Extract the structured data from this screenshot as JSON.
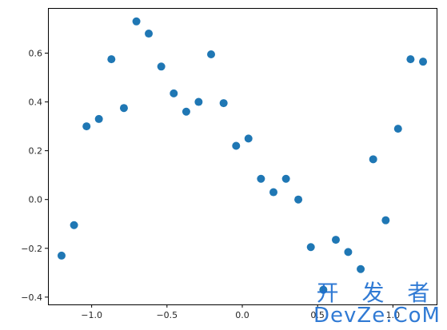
{
  "chart_data": {
    "type": "scatter",
    "title": "",
    "xlabel": "",
    "ylabel": "",
    "xlim": [
      -1.29,
      1.29
    ],
    "ylim": [
      -0.43,
      0.785
    ],
    "xticks": [
      -1.0,
      -0.5,
      0.0,
      0.5,
      1.0
    ],
    "yticks": [
      -0.4,
      -0.2,
      0.0,
      0.2,
      0.4,
      0.6
    ],
    "xtick_labels": [
      "−1.0",
      "−0.5",
      "0.0",
      "0.5",
      "1.0"
    ],
    "ytick_labels": [
      "−0.4",
      "−0.2",
      "0.0",
      "0.2",
      "0.4",
      "0.6"
    ],
    "grid": false,
    "marker_color": "#1f77b4",
    "points": [
      {
        "x": -1.2,
        "y": -0.23
      },
      {
        "x": -1.117,
        "y": -0.105
      },
      {
        "x": -1.034,
        "y": 0.3
      },
      {
        "x": -0.952,
        "y": 0.33
      },
      {
        "x": -0.869,
        "y": 0.575
      },
      {
        "x": -0.786,
        "y": 0.375
      },
      {
        "x": -0.703,
        "y": 0.73
      },
      {
        "x": -0.621,
        "y": 0.68
      },
      {
        "x": -0.538,
        "y": 0.545
      },
      {
        "x": -0.455,
        "y": 0.435
      },
      {
        "x": -0.372,
        "y": 0.36
      },
      {
        "x": -0.29,
        "y": 0.4
      },
      {
        "x": -0.207,
        "y": 0.595
      },
      {
        "x": -0.124,
        "y": 0.395
      },
      {
        "x": -0.041,
        "y": 0.22
      },
      {
        "x": 0.041,
        "y": 0.25
      },
      {
        "x": 0.124,
        "y": 0.085
      },
      {
        "x": 0.207,
        "y": 0.03
      },
      {
        "x": 0.29,
        "y": 0.085
      },
      {
        "x": 0.372,
        "y": 0.0
      },
      {
        "x": 0.455,
        "y": -0.195
      },
      {
        "x": 0.538,
        "y": -0.37
      },
      {
        "x": 0.621,
        "y": -0.165
      },
      {
        "x": 0.703,
        "y": -0.215
      },
      {
        "x": 0.786,
        "y": -0.285
      },
      {
        "x": 0.869,
        "y": 0.165
      },
      {
        "x": 0.952,
        "y": -0.085
      },
      {
        "x": 1.034,
        "y": 0.29
      },
      {
        "x": 1.117,
        "y": 0.575
      },
      {
        "x": 1.2,
        "y": 0.565
      }
    ]
  },
  "watermark": {
    "line1": "开 发 者",
    "line2": "DevZe.CoM",
    "color": "#1f6fd1"
  }
}
